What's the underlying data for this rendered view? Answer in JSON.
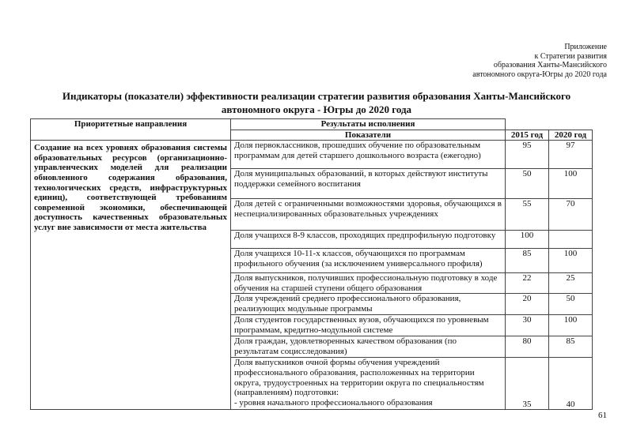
{
  "appendix": [
    "Приложение",
    "к Стратегии  развития",
    "образования Ханты-Мансийского",
    "автономного округа-Югры до 2020 года"
  ],
  "title": "Индикаторы (показатели) эффективности реализации стратегии развития образования Ханты-Мансийского автономного округа - Югры до 2020 года",
  "table": {
    "headers": {
      "priority": "Приоритетные направления",
      "results": "Результаты исполнения",
      "indicators": "Показатели",
      "y2015": "2015 год",
      "y2020": "2020 год"
    },
    "priority": "Создание на всех уровнях образования системы образовательных ресурсов (организационно-управленческих моделей для реализации обновленного содержания образования, технологических средств, инфраструктурных единиц), соответствующей требованиям современной экономики, обеспечивающей доступность качественных образовательных услуг вне зависимости от места жительства",
    "rows": [
      {
        "indicator": "Доля первоклассников, прошедших обучение по образовательным программам для детей старшего дошкольного возраста (ежегодно)",
        "y2015": "95",
        "y2020": "97"
      },
      {
        "indicator": "Доля муниципальных образований, в которых действуют институты поддержки семейного воспитания",
        "y2015": "50",
        "y2020": "100"
      },
      {
        "indicator": "Доля детей с ограниченными возможностями здоровья, обучающихся в неспециализированных образовательных учреждениях",
        "y2015": "55",
        "y2020": "70"
      },
      {
        "indicator": "Доля учащихся 8-9 классов, проходящих предпрофильную подготовку",
        "y2015": "100",
        "y2020": ""
      },
      {
        "indicator": "Доля учащихся 10-11-х классов, обучающихся по программам профильного обучения (за исключением универсального профиля)",
        "y2015": "85",
        "y2020": "100"
      },
      {
        "indicator": "Доля выпускников, получивших профессиональную подготовку в ходе обучения на старшей ступени общего образования",
        "y2015": "22",
        "y2020": "25"
      },
      {
        "indicator": "Доля учреждений среднего профессионального образования, реализующих модульные программы",
        "y2015": "20",
        "y2020": "50"
      },
      {
        "indicator": "Доля студентов государственных вузов, обучающихся по уровневым программам, кредитно-модульной системе",
        "y2015": "30",
        "y2020": "100"
      },
      {
        "indicator": "Доля граждан, удовлетворенных качеством образования (по результатам социсследования)",
        "y2015": "80",
        "y2020": "85"
      }
    ],
    "last_row": {
      "indicator": "Доля выпускников очной формы обучения учреждений профессионального образования, расположенных на территории округа, трудоустроенных на территории округа по специальностям (направлениям) подготовки:",
      "sub": "- уровня начального профессионального образования",
      "y2015": "35",
      "y2020": "40"
    }
  },
  "page_number": "61"
}
